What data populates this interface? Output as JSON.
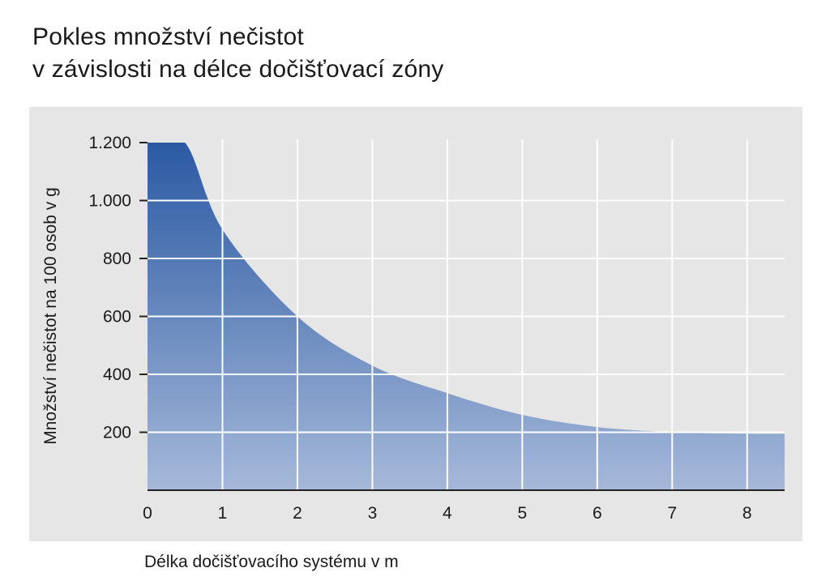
{
  "title": {
    "line1": "Pokles množství nečistot",
    "line2": "v závislosti na délce dočišťovací zóny"
  },
  "chart_data": {
    "type": "area",
    "title": "Pokles množství nečistot v závislosti na délce dočišťovací zóny",
    "xlabel": "Délka dočišťovacího systému v m",
    "ylabel": "Množství nečistot na 100 osob v g",
    "xlim": [
      0,
      8.5
    ],
    "ylim": [
      0,
      1200
    ],
    "x_ticks": [
      0,
      1,
      2,
      3,
      4,
      5,
      6,
      7,
      8
    ],
    "x_tick_labels": [
      "0",
      "1",
      "2",
      "3",
      "4",
      "5",
      "6",
      "7",
      "8"
    ],
    "y_ticks": [
      200,
      400,
      600,
      800,
      1000,
      1200
    ],
    "y_tick_labels": [
      "200",
      "400",
      "600",
      "800",
      "1.000",
      "1.200"
    ],
    "grid": true,
    "series": [
      {
        "x": [
          0,
          0.5,
          1,
          2,
          3,
          4,
          5,
          6,
          7,
          8,
          8.5
        ],
        "y": [
          1200,
          1200,
          900,
          600,
          430,
          335,
          260,
          218,
          200,
          195,
          195
        ]
      }
    ],
    "colors": {
      "fill_top": "#2b5aa3",
      "fill_bottom": "#a5b8d9",
      "grid": "#ffffff",
      "background": "#e6e6e6"
    }
  }
}
